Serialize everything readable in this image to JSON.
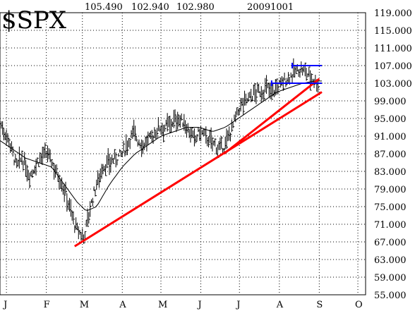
{
  "chart_data": {
    "type": "ohlc",
    "title": "$SPX",
    "header_values": [
      "105.490",
      "102.940",
      "102.980",
      "20091001"
    ],
    "ylim": [
      55,
      119
    ],
    "y_ticks": [
      "119.000",
      "115.000",
      "111.000",
      "107.000",
      "103.000",
      "99.000",
      "95.000",
      "91.000",
      "87.000",
      "83.000",
      "79.000",
      "75.000",
      "71.000",
      "67.000",
      "63.000",
      "59.000",
      "55.000"
    ],
    "x_ticks": [
      "J",
      "F",
      "M",
      "A",
      "M",
      "J",
      "J",
      "A",
      "S",
      "O"
    ],
    "x_tick_days": [
      0,
      31,
      59,
      90,
      120,
      151,
      181,
      212,
      243,
      273
    ],
    "price_anchors": [
      [
        -5,
        94
      ],
      [
        2,
        90
      ],
      [
        8,
        84
      ],
      [
        12,
        86
      ],
      [
        18,
        82
      ],
      [
        22,
        84
      ],
      [
        26,
        86
      ],
      [
        32,
        87
      ],
      [
        37,
        84
      ],
      [
        42,
        81
      ],
      [
        46,
        78
      ],
      [
        50,
        74
      ],
      [
        54,
        70
      ],
      [
        57,
        69
      ],
      [
        60,
        68
      ],
      [
        63,
        72
      ],
      [
        67,
        77
      ],
      [
        71,
        81
      ],
      [
        75,
        84
      ],
      [
        80,
        85
      ],
      [
        85,
        86
      ],
      [
        90,
        87
      ],
      [
        95,
        90
      ],
      [
        99,
        92
      ],
      [
        102,
        90
      ],
      [
        106,
        89
      ],
      [
        110,
        90
      ],
      [
        114,
        91
      ],
      [
        118,
        93
      ],
      [
        123,
        93
      ],
      [
        128,
        94
      ],
      [
        133,
        95
      ],
      [
        138,
        94
      ],
      [
        142,
        92
      ],
      [
        146,
        90
      ],
      [
        150,
        92
      ],
      [
        154,
        91
      ],
      [
        158,
        90
      ],
      [
        162,
        89
      ],
      [
        166,
        88
      ],
      [
        170,
        89
      ],
      [
        174,
        92
      ],
      [
        178,
        95
      ],
      [
        182,
        98
      ],
      [
        186,
        99
      ],
      [
        190,
        100
      ],
      [
        194,
        101
      ],
      [
        198,
        101
      ],
      [
        202,
        102
      ],
      [
        206,
        101
      ],
      [
        210,
        102
      ],
      [
        214,
        103
      ],
      [
        218,
        104
      ],
      [
        222,
        105
      ],
      [
        226,
        106
      ],
      [
        230,
        106
      ],
      [
        234,
        105
      ],
      [
        238,
        104
      ],
      [
        242,
        103
      ]
    ],
    "moving_average_anchors": [
      [
        -5,
        90
      ],
      [
        5,
        88
      ],
      [
        15,
        86
      ],
      [
        25,
        85
      ],
      [
        35,
        84
      ],
      [
        45,
        80
      ],
      [
        55,
        76
      ],
      [
        62,
        74
      ],
      [
        70,
        75
      ],
      [
        80,
        80
      ],
      [
        90,
        84
      ],
      [
        100,
        87
      ],
      [
        110,
        89
      ],
      [
        120,
        91
      ],
      [
        130,
        92
      ],
      [
        140,
        93
      ],
      [
        150,
        93
      ],
      [
        160,
        92
      ],
      [
        170,
        93
      ],
      [
        180,
        95
      ],
      [
        190,
        97
      ],
      [
        200,
        99
      ],
      [
        210,
        101
      ],
      [
        220,
        102
      ],
      [
        230,
        103
      ],
      [
        240,
        103.5
      ],
      [
        245,
        103.5
      ]
    ],
    "trendlines": [
      {
        "color": "#ff0000",
        "points": [
          [
            53,
            66
          ],
          [
            245,
            101
          ]
        ]
      },
      {
        "color": "#ff0000",
        "points": [
          [
            169,
            87
          ],
          [
            243,
            104
          ]
        ]
      }
    ],
    "horizontal_lines": [
      {
        "color": "#0000ff",
        "y": 107,
        "x_range": [
          222,
          245
        ]
      },
      {
        "color": "#0000ff",
        "y": 103,
        "x_range": [
          206,
          245
        ]
      }
    ],
    "colors": {
      "price": "#000000",
      "average": "#000000",
      "trend": "#ff0000",
      "resistance": "#0000ff",
      "grid": "#000000"
    }
  }
}
